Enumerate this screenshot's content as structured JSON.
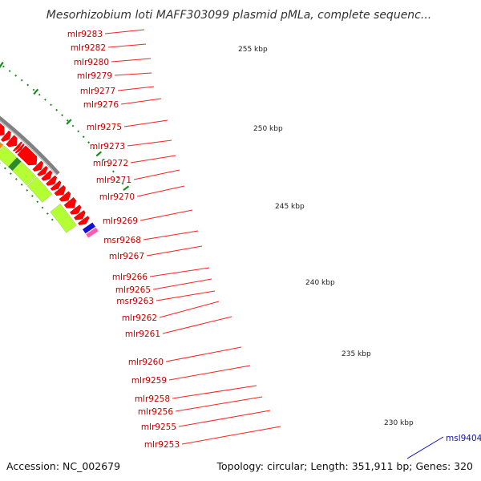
{
  "title": "Mesorhizobium loti MAFF303099 plasmid pMLa, complete sequenc...",
  "footer": {
    "accession": "Accession: NC_002679",
    "topology": "Topology: circular; Length: 351,911 bp; Genes: 320"
  },
  "scale_labels": [
    "255 kbp",
    "250 kbp",
    "245 kbp",
    "240 kbp",
    "235 kbp",
    "230 kbp"
  ],
  "gene_labels": [
    "mlr9283",
    "mlr9282",
    "mlr9280",
    "mlr9279",
    "mlr9277",
    "mlr9276",
    "mlr9275",
    "mlr9273",
    "mlr9272",
    "mlr9271",
    "mlr9270",
    "mlr9269",
    "msr9268",
    "mlr9267",
    "mlr9266",
    "mlr9265",
    "msr9263",
    "mlr9262",
    "mlr9261",
    "mlr9260",
    "mlr9259",
    "mlr9258",
    "mlr9256",
    "mlr9255",
    "mlr9253"
  ],
  "right_label": "msl9404",
  "colors": {
    "gene_red": "#ff0000",
    "cog_purple": "#3c3c8c",
    "cog_gray": "#c8c8c8",
    "cog_green": "#b3ff33",
    "cog_darkgreen": "#2a8a2a",
    "cog_orange": "#ff8c00",
    "label_red": "#c00000",
    "label_blue": "#1010c0",
    "backbone": "#808080",
    "tick_green": "#1a8a1a"
  }
}
